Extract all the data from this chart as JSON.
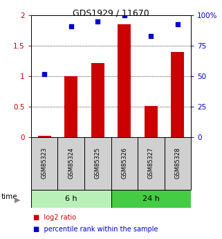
{
  "title": "GDS1929 / 11670",
  "samples": [
    "GSM85323",
    "GSM85324",
    "GSM85325",
    "GSM85326",
    "GSM85327",
    "GSM85328"
  ],
  "log2_ratio": [
    0.03,
    1.0,
    1.22,
    1.86,
    0.52,
    1.4
  ],
  "percentile_rank": [
    52,
    91,
    95,
    100,
    83,
    93
  ],
  "groups": [
    {
      "label": "6 h",
      "color": "#b8f0b8",
      "color_dark": "#44cc44"
    },
    {
      "label": "24 h",
      "color": "#44cc44",
      "color_dark": "#22aa22"
    }
  ],
  "bar_color": "#cc0000",
  "dot_color": "#0000cc",
  "ylim_left": [
    0,
    2
  ],
  "ylim_right": [
    0,
    100
  ],
  "yticks_left": [
    0,
    0.5,
    1.0,
    1.5,
    2.0
  ],
  "yticks_right": [
    0,
    25,
    50,
    75,
    100
  ],
  "ytick_labels_left": [
    "0",
    "0.5",
    "1",
    "1.5",
    "2"
  ],
  "ytick_labels_right": [
    "0",
    "25",
    "50",
    "75",
    "100%"
  ],
  "left_axis_color": "#cc0000",
  "right_axis_color": "#0000cc",
  "sample_box_color": "#d0d0d0",
  "legend_items": [
    {
      "label": "log2 ratio",
      "color": "#cc0000"
    },
    {
      "label": "percentile rank within the sample",
      "color": "#0000cc"
    }
  ],
  "bar_width": 0.5
}
